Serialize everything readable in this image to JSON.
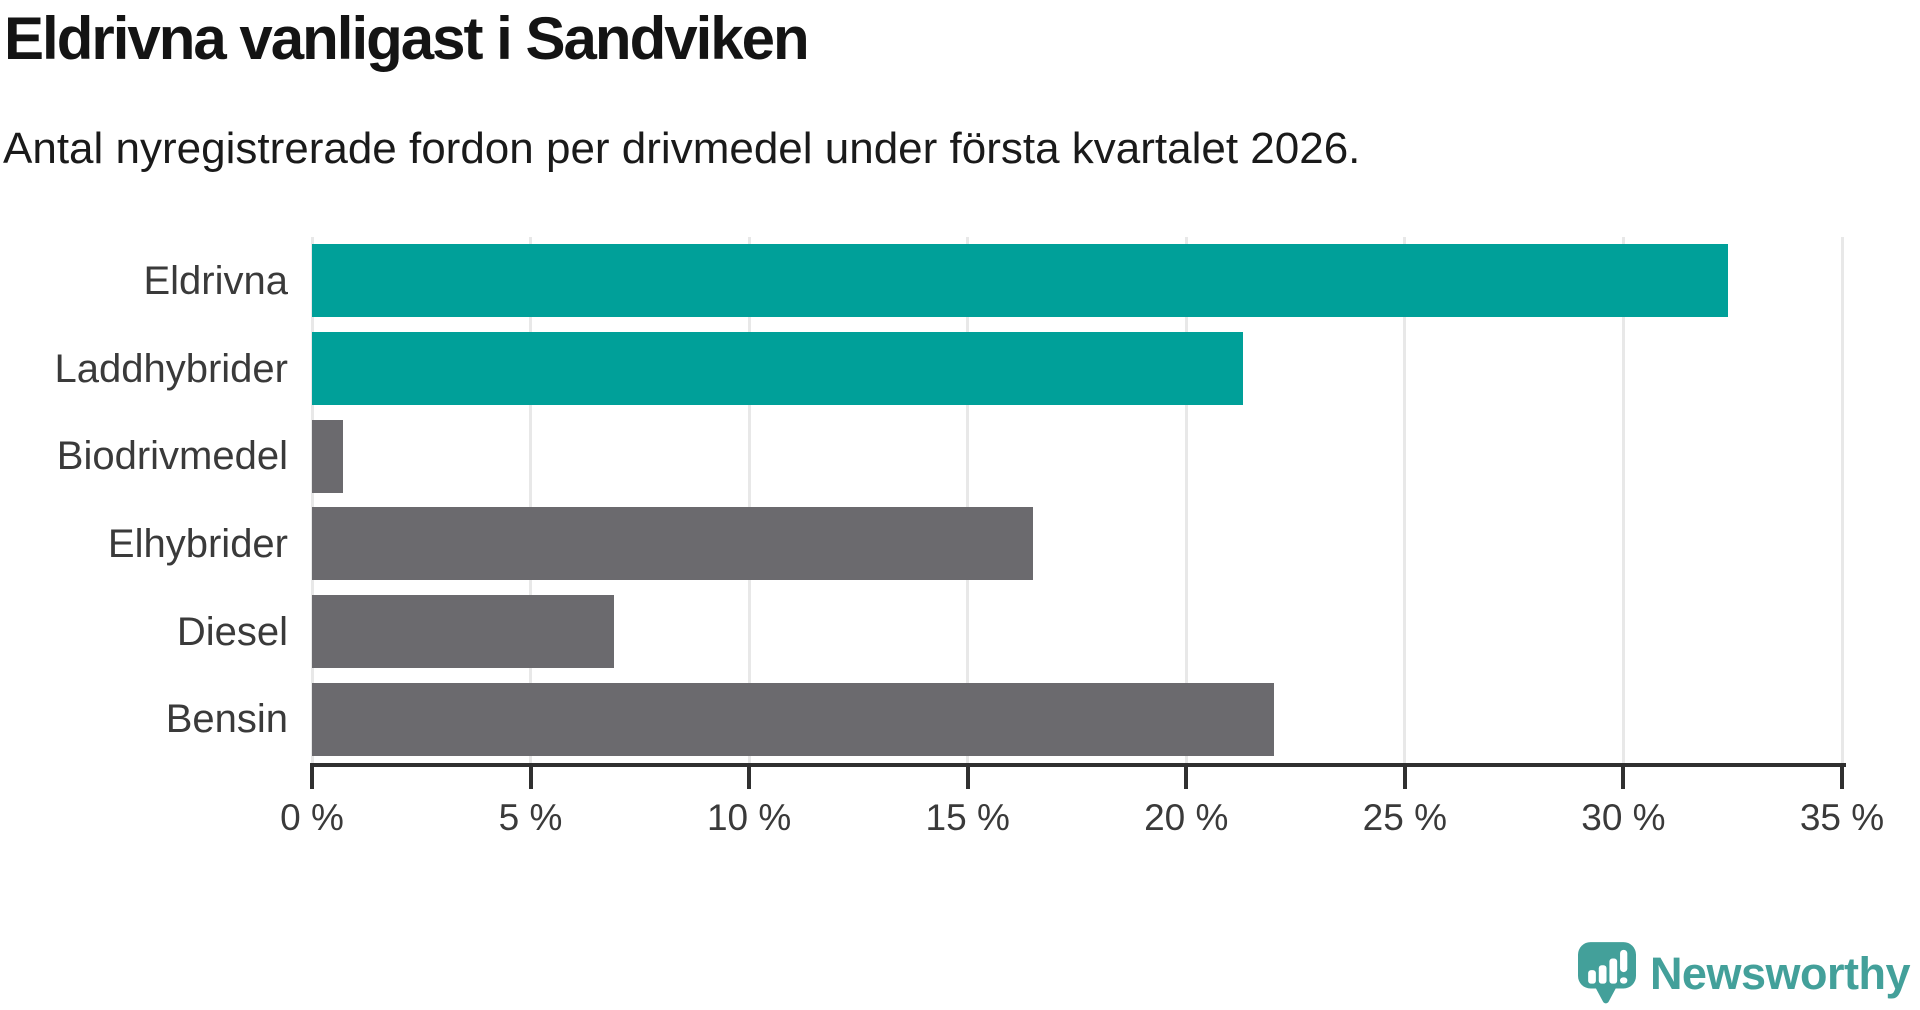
{
  "header": {
    "title": "Eldrivna vanligast i Sandviken",
    "subtitle": "Antal nyregistrerade fordon per drivmedel under första kvartalet 2026."
  },
  "chart_data": {
    "type": "bar",
    "orientation": "horizontal",
    "title": "Eldrivna vanligast i Sandviken",
    "subtitle": "Antal nyregistrerade fordon per drivmedel under första kvartalet 2026.",
    "categories": [
      "Eldrivna",
      "Laddhybrider",
      "Biodrivmedel",
      "Elhybrider",
      "Diesel",
      "Bensin"
    ],
    "values": [
      32.4,
      21.3,
      0.7,
      16.5,
      6.9,
      22.0
    ],
    "value_unit": "%",
    "xlabel": "",
    "ylabel": "",
    "xlim": [
      0,
      35
    ],
    "x_ticks": [
      0,
      5,
      10,
      15,
      20,
      25,
      30,
      35
    ],
    "x_tick_labels": [
      "0 %",
      "5 %",
      "10 %",
      "15 %",
      "20 %",
      "25 %",
      "30 %",
      "35 %"
    ],
    "grid": true,
    "legend": "none",
    "colors": {
      "highlight": "#00A099",
      "default": "#6B6A6E",
      "bar_colors": [
        "#00A099",
        "#00A099",
        "#6B6A6E",
        "#6B6A6E",
        "#6B6A6E",
        "#6B6A6E"
      ],
      "gridline": "#E8E8E8",
      "axis": "#303030",
      "tick_label": "#3A3A3A",
      "category_label": "#3A3A3A"
    }
  },
  "branding": {
    "logo_text": "Newsworthy",
    "logo_color": "#43A09A"
  }
}
